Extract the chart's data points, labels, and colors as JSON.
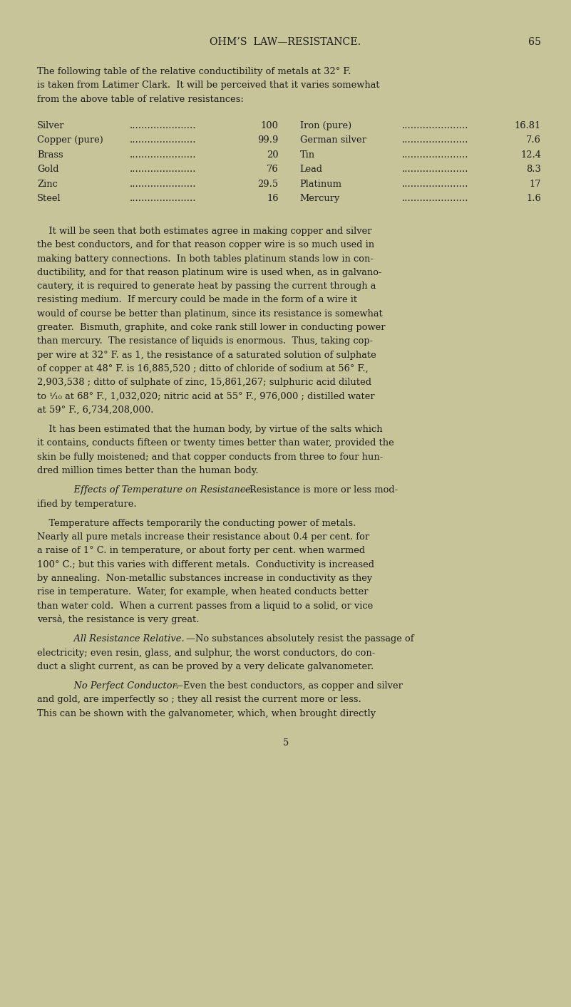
{
  "bg_color": "#c8c49a",
  "text_color": "#1a1a1a",
  "page_width": 8.01,
  "page_height": 14.13,
  "header_title": "OHM’S  LAW—RESISTANCE.",
  "header_page": "65",
  "intro_text": [
    "The following table of the relative conductibility of metals at 32° F.",
    "is taken from Latimer Clark.  It will be perceived that it varies somewhat",
    "from the above table of relative resistances:"
  ],
  "table_left": [
    [
      "Silver",
      "100"
    ],
    [
      "Copper (pure)",
      "99.9"
    ],
    [
      "Brass",
      "20"
    ],
    [
      "Gold",
      "76"
    ],
    [
      "Zinc",
      "29.5"
    ],
    [
      "Steel",
      "16"
    ]
  ],
  "table_right": [
    [
      "Iron (pure)",
      "16.81"
    ],
    [
      "German silver",
      "7.6"
    ],
    [
      "Tin",
      "12.4"
    ],
    [
      "Lead",
      "8.3"
    ],
    [
      "Platinum",
      "17"
    ],
    [
      "Mercury",
      "1.6"
    ]
  ],
  "para0_lines": [
    "    It will be seen that both estimates agree in making copper and silver",
    "the best conductors, and for that reason copper wire is so much used in",
    "making battery connections.  In both tables platinum stands low in con-",
    "ductibility, and for that reason platinum wire is used when, as in galvano-",
    "cautery, it is required to generate heat by passing the current through a",
    "resisting medium.  If mercury could be made in the form of a wire it",
    "would of course be better than platinum, since its resistance is somewhat",
    "greater.  Bismuth, graphite, and coke rank still lower in conducting power",
    "than mercury.  The resistance of liquids is enormous.  Thus, taking cop-",
    "per wire at 32° F. as 1, the resistance of a saturated solution of sulphate",
    "of copper at 48° F. is 16,885,520 ; ditto of chloride of sodium at 56° F.,",
    "2,903,538 ; ditto of sulphate of zinc, 15,861,267; sulphuric acid diluted",
    "to ¹⁄₁₀ at 68° F., 1,032,020; nitric acid at 55° F., 976,000 ; distilled water",
    "at 59° F., 6,734,208,000."
  ],
  "para1_lines": [
    "    It has been estimated that the human body, by virtue of the salts which",
    "it contains, conducts fifteen or twenty times better than water, provided the",
    "skin be fully moistened; and that copper conducts from three to four hun-",
    "dred million times better than the human body."
  ],
  "italic_label1": "Effects of Temperature on Resistance.",
  "after_label1_line1": "—Resistance is more or less mod-",
  "after_label1_line2": "ified by temperature.",
  "para3_lines": [
    "    Temperature affects temporarily the conducting power of metals.",
    "Nearly all pure metals increase their resistance about 0.4 per cent. for",
    "a raise of 1° C. in temperature, or about forty per cent. when warmed",
    "100° C.; but this varies with different metals.  Conductivity is increased",
    "by annealing.  Non-metallic substances increase in conductivity as they",
    "rise in temperature.  Water, for example, when heated conducts better",
    "than water cold.  When a current passes from a liquid to a solid, or vice",
    "versà, the resistance is very great."
  ],
  "italic_label2": "All Resistance Relative.",
  "after_label2_line1": "—No substances absolutely resist the passage of",
  "para4_lines": [
    "electricity; even resin, glass, and sulphur, the worst conductors, do con-",
    "duct a slight current, as can be proved by a very delicate galvanometer."
  ],
  "italic_label3": "No Perfect Conductor.",
  "after_label3_line1": "—Even the best conductors, as copper and silver",
  "para5_lines": [
    "and gold, are imperfectly so ; they all resist the current more or less.",
    "This can be shown with the galvanometer, which, when brought directly"
  ],
  "footer_number": "5"
}
